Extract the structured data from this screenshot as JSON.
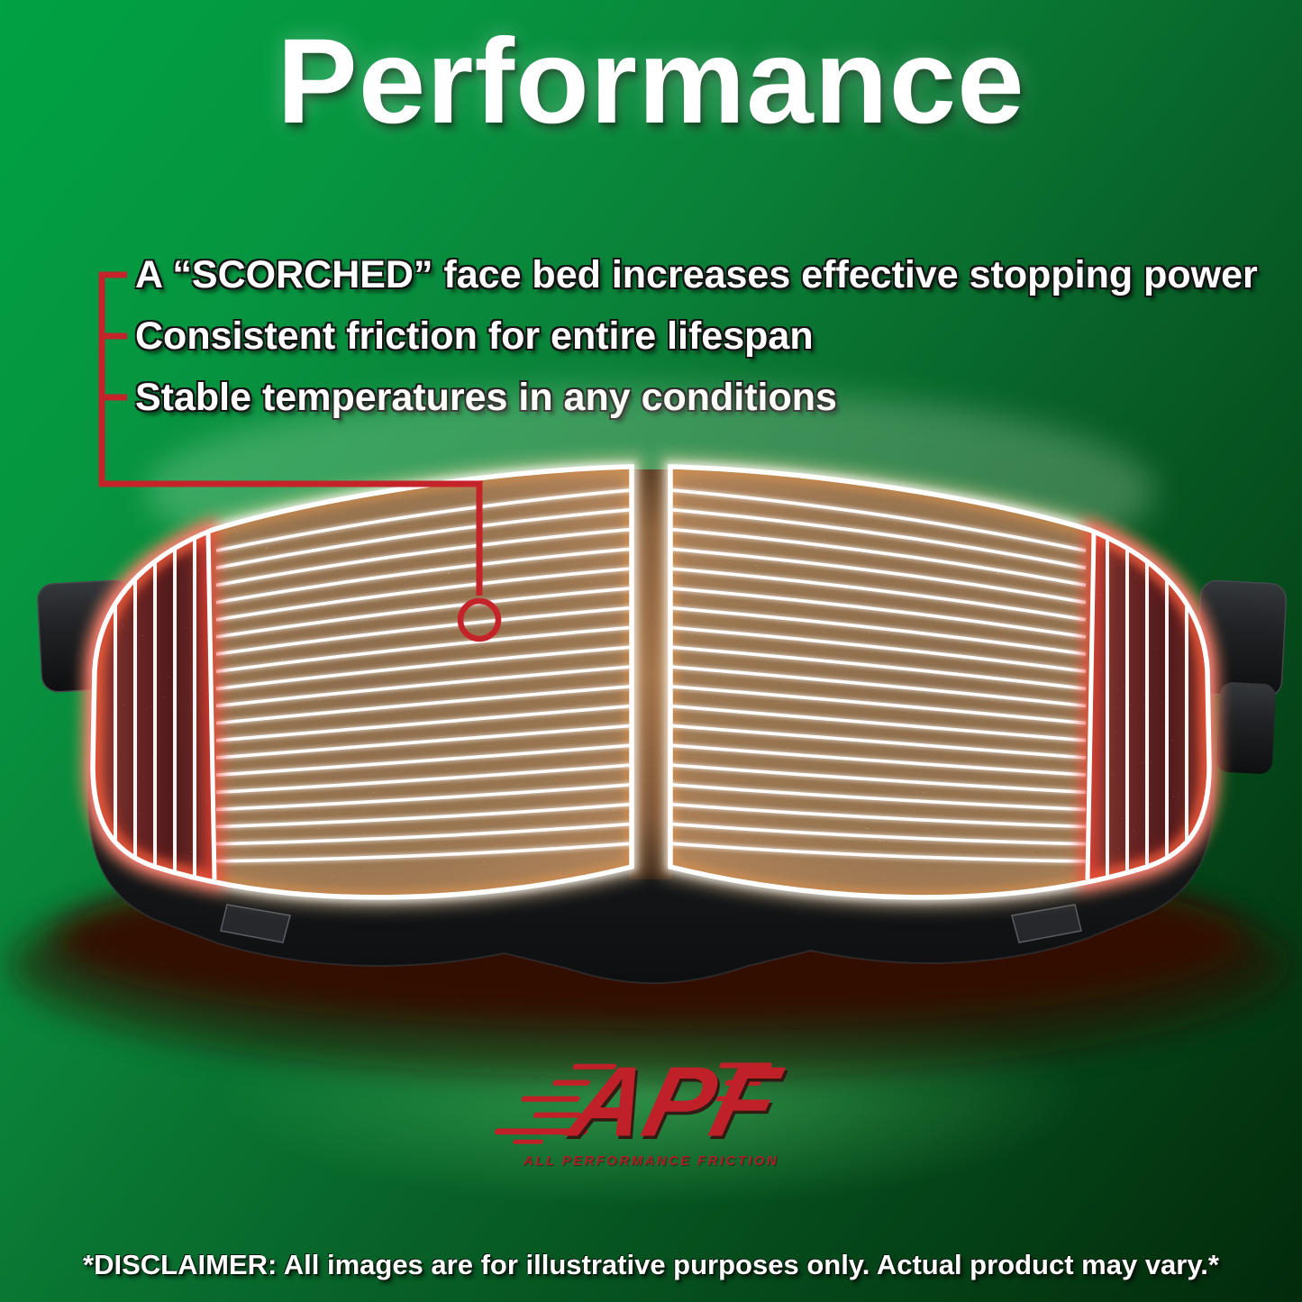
{
  "title": "Performance",
  "features": [
    "A “SCORCHED” face bed increases effective stopping power",
    "Consistent friction for entire lifespan",
    "Stable temperatures in any conditions"
  ],
  "logo": {
    "acronym": "APF",
    "tagline": "ALL PERFORMANCE FRICTION"
  },
  "disclaimer": "*DISCLAIMER: All images are for illustrative purposes only. Actual product may vary.*",
  "illustration": {
    "type": "scorched-face brake pad pair, face view",
    "groove_count": 19,
    "scorch_line_count": 5,
    "colors": {
      "background_top": "#00a143",
      "background_bottom": "#03310e",
      "callout_red": "#c4232a",
      "groove_white": "#ffffff",
      "friction_tan": "#a07a54",
      "friction_rim_orange": "#dd9450",
      "scorched_maroon": "#5c1f1f",
      "scorch_glow_red": "#ff4030",
      "backing_black": "#1a1b1d",
      "warm_edge_glow": "#ffdfae",
      "logo_red": "#c02128",
      "shadow_maroon": "#3f0d04"
    }
  }
}
